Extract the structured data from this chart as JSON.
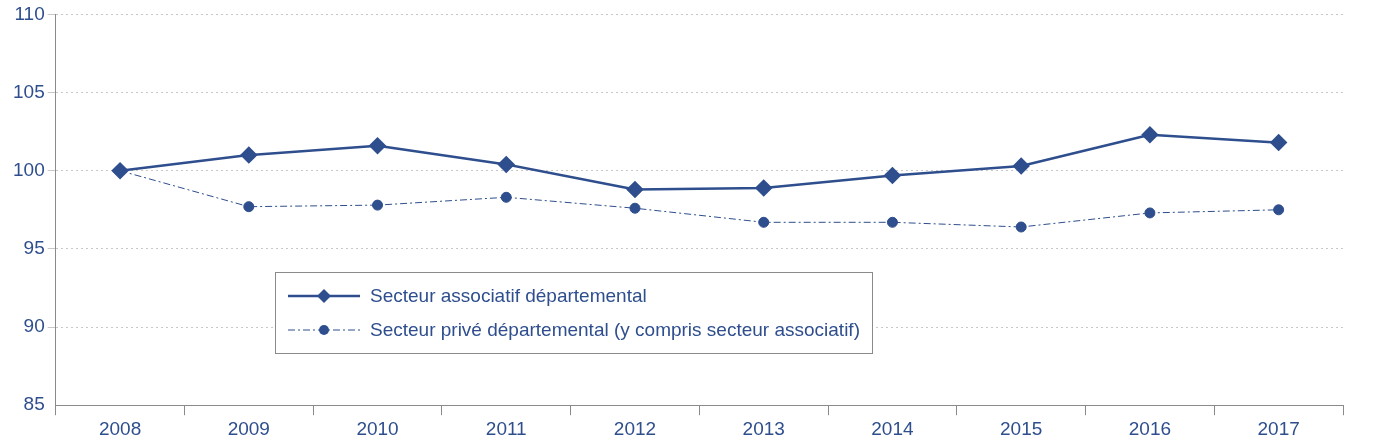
{
  "chart_data": {
    "type": "line",
    "categories": [
      "2008",
      "2009",
      "2010",
      "2011",
      "2012",
      "2013",
      "2014",
      "2015",
      "2016",
      "2017"
    ],
    "series": [
      {
        "name": "Secteur associatif départemental",
        "color": "#2e4e8e",
        "marker": "diamond",
        "line_style": "solid",
        "values": [
          100,
          101.0,
          101.6,
          100.4,
          98.8,
          98.9,
          99.7,
          100.3,
          102.3,
          101.8
        ]
      },
      {
        "name": "Secteur privé départemental (y compris secteur associatif)",
        "color": "#2e4e8e",
        "marker": "circle",
        "line_style": "dashed",
        "values": [
          100,
          97.7,
          97.8,
          98.3,
          97.6,
          96.7,
          96.7,
          96.4,
          97.3,
          97.5
        ]
      }
    ],
    "ylim": [
      85,
      110
    ],
    "yticks": [
      85,
      90,
      95,
      100,
      105,
      110
    ],
    "grid": "y",
    "legend": "bottom left"
  }
}
